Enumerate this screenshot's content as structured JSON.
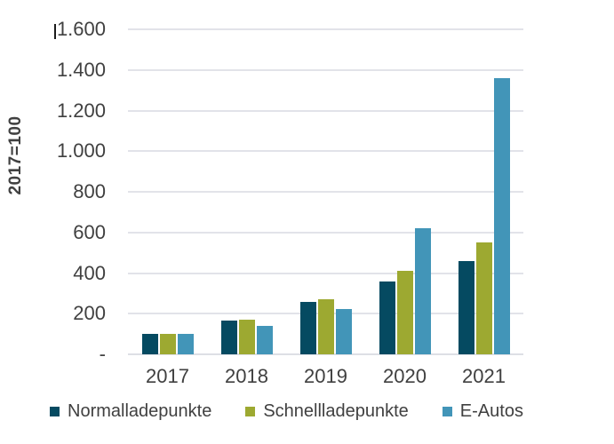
{
  "chart_data": {
    "type": "bar",
    "title": "",
    "xlabel": "",
    "ylabel": "2017=100",
    "ylim": [
      0,
      1600
    ],
    "grid": true,
    "legend_position": "bottom",
    "categories": [
      "2017",
      "2018",
      "2019",
      "2020",
      "2021"
    ],
    "series": [
      {
        "name": "Normalladepunkte",
        "color": "#054a61",
        "values": [
          100,
          165,
          260,
          360,
          460
        ]
      },
      {
        "name": "Schnellladepunkte",
        "color": "#9da931",
        "values": [
          100,
          170,
          270,
          410,
          550
        ]
      },
      {
        "name": "E-Autos",
        "color": "#4295b8",
        "values": [
          100,
          140,
          225,
          620,
          1360
        ]
      }
    ],
    "yticks": [
      {
        "value": 0,
        "label": "-"
      },
      {
        "value": 200,
        "label": "200"
      },
      {
        "value": 400,
        "label": "400"
      },
      {
        "value": 600,
        "label": "600"
      },
      {
        "value": 800,
        "label": "800"
      },
      {
        "value": 1000,
        "label": "1.000"
      },
      {
        "value": 1200,
        "label": "1.200"
      },
      {
        "value": 1400,
        "label": "1.400"
      },
      {
        "value": 1600,
        "label": "1.600"
      }
    ]
  }
}
